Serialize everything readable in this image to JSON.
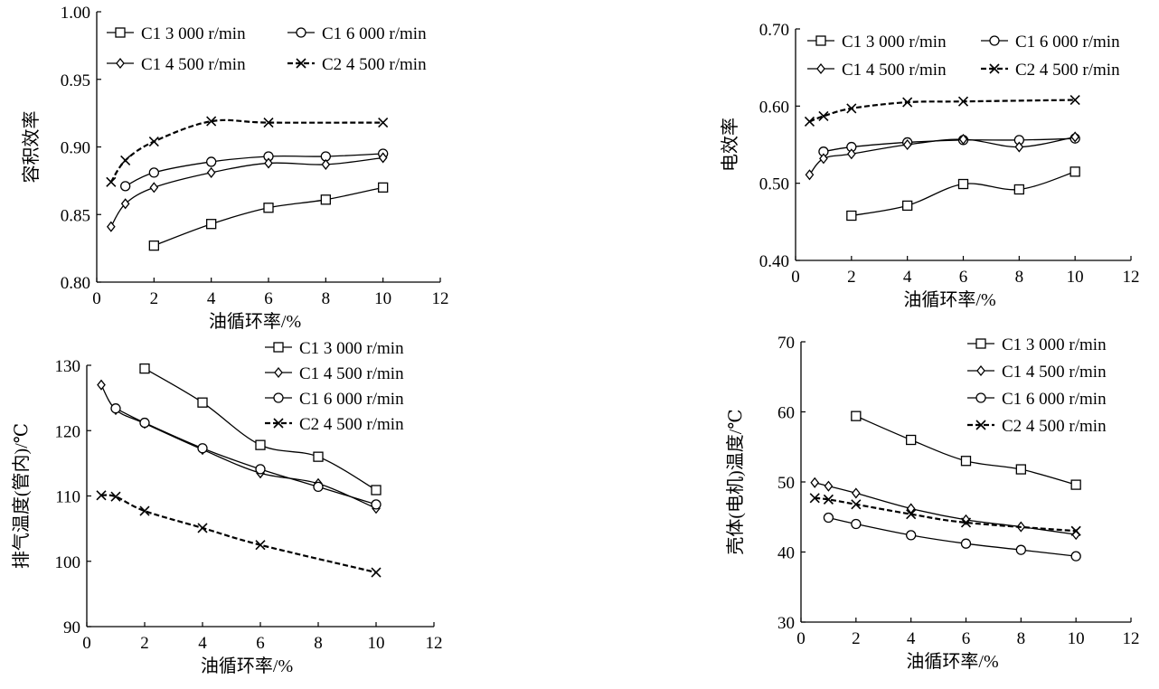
{
  "chart_data": [
    {
      "type": "line",
      "ylabel": "容积效率",
      "xlabel": "油循环率/%",
      "xlim": [
        0,
        12
      ],
      "ylim": [
        0.8,
        1.0
      ],
      "xticks": [
        "0",
        "2",
        "4",
        "6",
        "8",
        "10",
        "12"
      ],
      "yticks": [
        "0.80",
        "0.85",
        "0.90",
        "0.95",
        "1.00"
      ],
      "legend_position": "top",
      "series": [
        {
          "name": "C1  3 000 r/min",
          "marker": "square",
          "dashed": false,
          "x": [
            2,
            4,
            6,
            8,
            10
          ],
          "y": [
            0.827,
            0.843,
            0.855,
            0.861,
            0.87
          ]
        },
        {
          "name": "C1  6 000 r/min",
          "marker": "circle",
          "dashed": false,
          "x": [
            1,
            2,
            4,
            6,
            8,
            10
          ],
          "y": [
            0.871,
            0.881,
            0.889,
            0.893,
            0.893,
            0.895
          ]
        },
        {
          "name": "C1  4 500 r/min",
          "marker": "diamond",
          "dashed": false,
          "x": [
            0.5,
            1,
            2,
            4,
            6,
            8,
            10
          ],
          "y": [
            0.841,
            0.858,
            0.87,
            0.881,
            0.888,
            0.887,
            0.892
          ]
        },
        {
          "name": "C2  4 500 r/min",
          "marker": "x",
          "dashed": true,
          "x": [
            0.5,
            1,
            2,
            4,
            6,
            10
          ],
          "y": [
            0.874,
            0.89,
            0.904,
            0.919,
            0.918,
            0.918
          ]
        }
      ]
    },
    {
      "type": "line",
      "ylabel": "电效率",
      "xlabel": "油循环率/%",
      "xlim": [
        0,
        12
      ],
      "ylim": [
        0.4,
        0.7
      ],
      "xticks": [
        "0",
        "2",
        "4",
        "6",
        "8",
        "10",
        "12"
      ],
      "yticks": [
        "0.40",
        "0.50",
        "0.60",
        "0.70"
      ],
      "legend_position": "top",
      "series": [
        {
          "name": "C1  3 000 r/min",
          "marker": "square",
          "dashed": false,
          "x": [
            2,
            4,
            6,
            8,
            10
          ],
          "y": [
            0.458,
            0.471,
            0.499,
            0.492,
            0.515
          ]
        },
        {
          "name": "C1  6 000 r/min",
          "marker": "circle",
          "dashed": false,
          "x": [
            1,
            2,
            4,
            6,
            8,
            10
          ],
          "y": [
            0.541,
            0.547,
            0.553,
            0.556,
            0.556,
            0.558
          ]
        },
        {
          "name": "C1  4 500 r/min",
          "marker": "diamond",
          "dashed": false,
          "x": [
            0.5,
            1,
            2,
            4,
            6,
            8,
            10
          ],
          "y": [
            0.511,
            0.532,
            0.538,
            0.55,
            0.557,
            0.547,
            0.56
          ]
        },
        {
          "name": "C2  4 500 r/min",
          "marker": "x",
          "dashed": true,
          "x": [
            0.5,
            1,
            2,
            4,
            6,
            10
          ],
          "y": [
            0.58,
            0.587,
            0.597,
            0.605,
            0.606,
            0.608
          ]
        }
      ]
    },
    {
      "type": "line",
      "ylabel": "排气温度(管内)/℃",
      "xlabel": "油循环率/%",
      "xlim": [
        0,
        12
      ],
      "ylim": [
        90,
        130
      ],
      "xticks": [
        "0",
        "2",
        "4",
        "6",
        "8",
        "10",
        "12"
      ],
      "yticks": [
        "90",
        "100",
        "110",
        "120",
        "130"
      ],
      "legend_position": "top-right",
      "series": [
        {
          "name": "C1  3 000 r/min",
          "marker": "square",
          "dashed": false,
          "x": [
            2,
            4,
            6,
            8,
            10
          ],
          "y": [
            129.5,
            124.3,
            117.8,
            116.0,
            110.9
          ]
        },
        {
          "name": "C1  4 500 r/min",
          "marker": "diamond",
          "dashed": false,
          "x": [
            0.5,
            1,
            2,
            4,
            6,
            8,
            10
          ],
          "y": [
            127.0,
            123.2,
            121.1,
            117.1,
            113.5,
            111.9,
            108.1
          ]
        },
        {
          "name": "C1  6 000 r/min",
          "marker": "circle",
          "dashed": false,
          "x": [
            1,
            2,
            4,
            6,
            8,
            10
          ],
          "y": [
            123.4,
            121.2,
            117.3,
            114.1,
            111.4,
            108.7
          ]
        },
        {
          "name": "C2  4 500 r/min",
          "marker": "x",
          "dashed": true,
          "x": [
            0.5,
            1,
            2,
            4,
            6,
            10
          ],
          "y": [
            110.1,
            109.9,
            107.7,
            105.1,
            102.5,
            98.3
          ]
        }
      ]
    },
    {
      "type": "line",
      "ylabel": "壳体(电机)温度/℃",
      "xlabel": "油循环率/%",
      "xlim": [
        0,
        12
      ],
      "ylim": [
        30,
        70
      ],
      "xticks": [
        "0",
        "2",
        "4",
        "6",
        "8",
        "10",
        "12"
      ],
      "yticks": [
        "30",
        "40",
        "50",
        "60",
        "70"
      ],
      "legend_position": "top-right",
      "series": [
        {
          "name": "C1  3 000 r/min",
          "marker": "square",
          "dashed": false,
          "x": [
            2,
            4,
            6,
            8,
            10
          ],
          "y": [
            59.4,
            56.0,
            53.0,
            51.8,
            49.6
          ]
        },
        {
          "name": "C1  4 500 r/min",
          "marker": "diamond",
          "dashed": false,
          "x": [
            0.5,
            1,
            2,
            4,
            6,
            8,
            10
          ],
          "y": [
            49.9,
            49.4,
            48.4,
            46.2,
            44.6,
            43.6,
            42.5
          ]
        },
        {
          "name": "C1  6 000 r/min",
          "marker": "circle",
          "dashed": false,
          "x": [
            1,
            2,
            4,
            6,
            8,
            10
          ],
          "y": [
            44.9,
            44.0,
            42.4,
            41.2,
            40.3,
            39.4
          ]
        },
        {
          "name": "C2  4 500 r/min",
          "marker": "x",
          "dashed": true,
          "x": [
            0.5,
            1,
            2,
            4,
            6,
            10
          ],
          "y": [
            47.7,
            47.5,
            46.8,
            45.4,
            44.2,
            43.0
          ]
        }
      ]
    }
  ]
}
